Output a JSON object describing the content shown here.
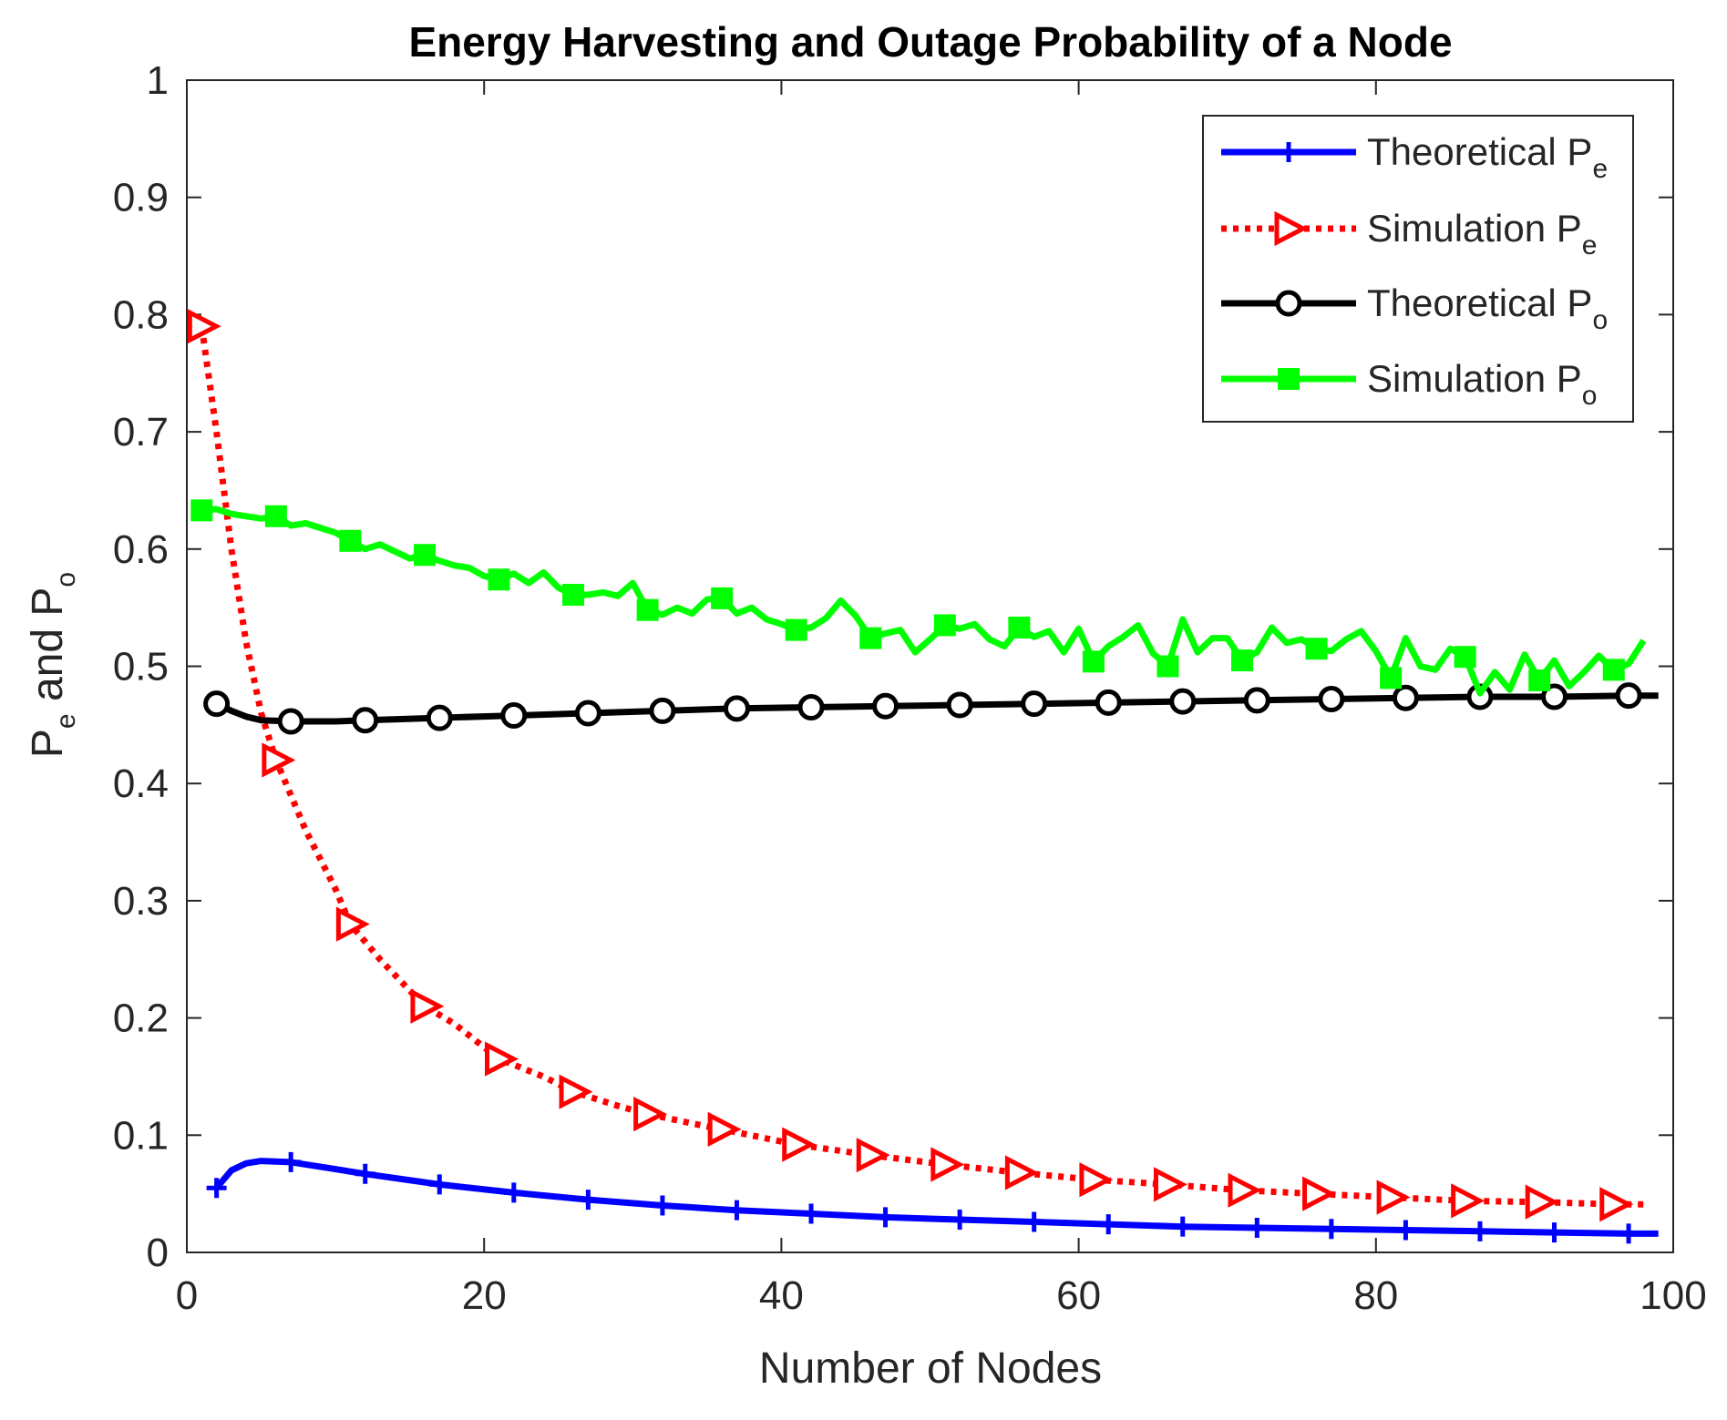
{
  "chart_data": {
    "type": "line",
    "title": "Energy Harvesting and Outage Probability of a Node",
    "xlabel": "Number of Nodes",
    "ylabel": {
      "main": "P",
      "sub1": "e",
      "mid": " and P",
      "sub2": "o"
    },
    "xlim": [
      0,
      100
    ],
    "ylim": [
      0,
      1
    ],
    "xticks": [
      0,
      20,
      40,
      60,
      80,
      100
    ],
    "xtick_labels": [
      "0",
      "20",
      "40",
      "60",
      "80",
      "100"
    ],
    "yticks": [
      0,
      0.1,
      0.2,
      0.3,
      0.4,
      0.5,
      0.6,
      0.7,
      0.8,
      0.9,
      1
    ],
    "ytick_labels": [
      "0",
      "0.1",
      "0.2",
      "0.3",
      "0.4",
      "0.5",
      "0.6",
      "0.7",
      "0.8",
      "0.9",
      "1"
    ],
    "grid": false,
    "legend_position": "top-right",
    "series": [
      {
        "name": "Theoretical Pe",
        "legend_main": "Theoretical P",
        "legend_sub": "e",
        "color": "#0000ff",
        "line_style": "solid",
        "marker": "plus",
        "x": [
          2,
          3,
          4,
          5,
          7,
          10,
          12,
          17,
          22,
          27,
          32,
          37,
          42,
          47,
          52,
          57,
          62,
          67,
          72,
          77,
          82,
          87,
          92,
          97,
          99
        ],
        "y": [
          0.055,
          0.07,
          0.076,
          0.078,
          0.077,
          0.071,
          0.067,
          0.058,
          0.051,
          0.045,
          0.04,
          0.036,
          0.033,
          0.03,
          0.028,
          0.026,
          0.024,
          0.022,
          0.021,
          0.02,
          0.019,
          0.018,
          0.017,
          0.016,
          0.016
        ],
        "marker_x": [
          2,
          7,
          12,
          17,
          22,
          27,
          32,
          37,
          42,
          47,
          52,
          57,
          62,
          67,
          72,
          77,
          82,
          87,
          92,
          97
        ]
      },
      {
        "name": "Simulation Pe",
        "legend_main": "Simulation P",
        "legend_sub": "e",
        "color": "#ff0000",
        "line_style": "dotted",
        "marker": "triangle-right",
        "x": [
          1,
          2,
          3,
          4,
          5,
          6,
          8,
          10,
          11,
          13,
          16,
          18,
          21,
          24,
          26,
          29,
          31,
          34,
          36,
          41,
          46,
          51,
          56,
          61,
          66,
          71,
          76,
          81,
          86,
          91,
          96,
          98
        ],
        "y": [
          0.79,
          0.7,
          0.6,
          0.52,
          0.46,
          0.42,
          0.36,
          0.31,
          0.28,
          0.25,
          0.21,
          0.195,
          0.165,
          0.15,
          0.137,
          0.125,
          0.118,
          0.11,
          0.105,
          0.092,
          0.083,
          0.075,
          0.068,
          0.062,
          0.058,
          0.053,
          0.05,
          0.047,
          0.044,
          0.043,
          0.041,
          0.041
        ],
        "marker_x": [
          1,
          6,
          11,
          16,
          21,
          26,
          31,
          36,
          41,
          46,
          51,
          56,
          61,
          66,
          71,
          76,
          81,
          86,
          91,
          96
        ]
      },
      {
        "name": "Theoretical Po",
        "legend_main": "Theoretical P",
        "legend_sub": "o",
        "color": "#000000",
        "line_style": "solid",
        "marker": "circle",
        "x": [
          2,
          3,
          4,
          5,
          7,
          10,
          12,
          17,
          22,
          27,
          32,
          37,
          42,
          47,
          52,
          57,
          62,
          67,
          72,
          77,
          82,
          87,
          92,
          97,
          99
        ],
        "y": [
          0.468,
          0.462,
          0.457,
          0.454,
          0.453,
          0.453,
          0.454,
          0.456,
          0.458,
          0.46,
          0.462,
          0.464,
          0.465,
          0.466,
          0.467,
          0.468,
          0.469,
          0.47,
          0.471,
          0.472,
          0.473,
          0.474,
          0.474,
          0.475,
          0.475
        ],
        "marker_x": [
          2,
          7,
          12,
          17,
          22,
          27,
          32,
          37,
          42,
          47,
          52,
          57,
          62,
          67,
          72,
          77,
          82,
          87,
          92,
          97
        ]
      },
      {
        "name": "Simulation Po",
        "legend_main": "Simulation P",
        "legend_sub": "o",
        "color": "#00ff00",
        "line_style": "solid",
        "marker": "square",
        "x": [
          1,
          2,
          3,
          4,
          5,
          6,
          7,
          8,
          9,
          10,
          11,
          12,
          13,
          14,
          15,
          16,
          17,
          18,
          19,
          20,
          21,
          22,
          23,
          24,
          25,
          26,
          27,
          28,
          29,
          30,
          31,
          32,
          33,
          34,
          35,
          36,
          37,
          38,
          39,
          40,
          41,
          42,
          43,
          44,
          45,
          46,
          47,
          48,
          49,
          50,
          51,
          52,
          53,
          54,
          55,
          56,
          57,
          58,
          59,
          60,
          61,
          62,
          63,
          64,
          65,
          66,
          67,
          68,
          69,
          70,
          71,
          72,
          73,
          74,
          75,
          76,
          77,
          78,
          79,
          80,
          81,
          82,
          83,
          84,
          85,
          86,
          87,
          88,
          89,
          90,
          91,
          92,
          93,
          94,
          95,
          96,
          97,
          98
        ],
        "y": [
          0.633,
          0.634,
          0.63,
          0.628,
          0.626,
          0.628,
          0.62,
          0.622,
          0.618,
          0.614,
          0.607,
          0.6,
          0.604,
          0.598,
          0.592,
          0.595,
          0.59,
          0.586,
          0.584,
          0.577,
          0.574,
          0.579,
          0.571,
          0.58,
          0.567,
          0.561,
          0.561,
          0.563,
          0.56,
          0.571,
          0.548,
          0.544,
          0.55,
          0.545,
          0.557,
          0.558,
          0.545,
          0.55,
          0.54,
          0.536,
          0.531,
          0.533,
          0.541,
          0.556,
          0.543,
          0.524,
          0.528,
          0.531,
          0.512,
          0.523,
          0.535,
          0.532,
          0.536,
          0.523,
          0.517,
          0.533,
          0.525,
          0.53,
          0.512,
          0.532,
          0.504,
          0.517,
          0.525,
          0.535,
          0.511,
          0.5,
          0.54,
          0.512,
          0.524,
          0.524,
          0.505,
          0.512,
          0.533,
          0.52,
          0.523,
          0.515,
          0.513,
          0.523,
          0.53,
          0.513,
          0.49,
          0.524,
          0.5,
          0.497,
          0.515,
          0.508,
          0.477,
          0.495,
          0.48,
          0.51,
          0.488,
          0.505,
          0.483,
          0.495,
          0.509,
          0.497,
          0.502,
          0.522
        ],
        "marker_x": [
          1,
          6,
          11,
          16,
          21,
          26,
          31,
          36,
          41,
          46,
          51,
          56,
          61,
          66,
          71,
          76,
          81,
          86,
          91,
          96
        ]
      }
    ]
  }
}
